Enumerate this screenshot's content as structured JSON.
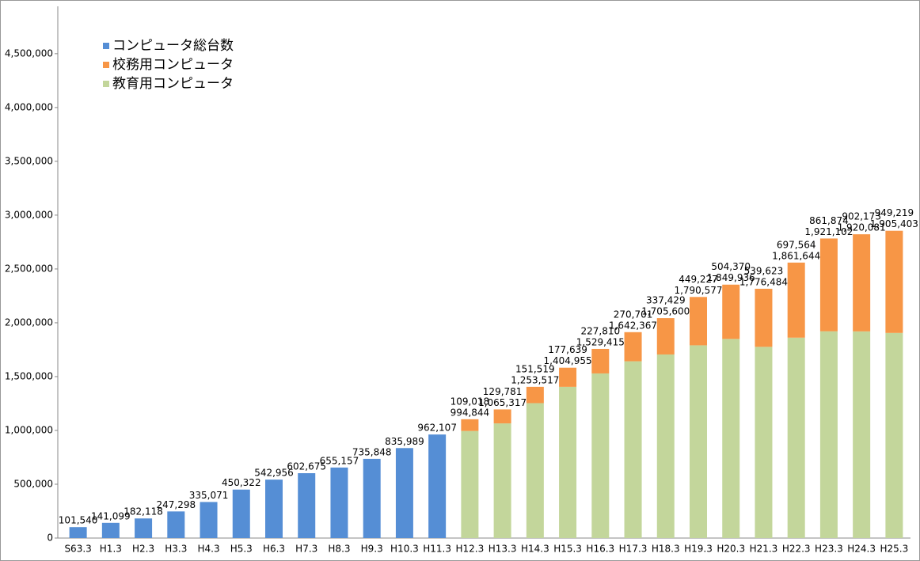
{
  "chart_data": {
    "type": "bar",
    "stacked": true,
    "categories": [
      "S63.3",
      "H1.3",
      "H2.3",
      "H3.3",
      "H4.3",
      "H5.3",
      "H6.3",
      "H7.3",
      "H8.3",
      "H9.3",
      "H10.3",
      "H11.3",
      "H12.3",
      "H13.3",
      "H14.3",
      "H15.3",
      "H16.3",
      "H17.3",
      "H18.3",
      "H19.3",
      "H20.3",
      "H21.3",
      "H22.3",
      "H23.3",
      "H24.3",
      "H25.3"
    ],
    "series": [
      {
        "name": "コンピュータ総台数",
        "color": "#558ed5",
        "values": [
          101540,
          141099,
          182118,
          247298,
          335071,
          450322,
          542956,
          602675,
          655157,
          735848,
          835989,
          962107,
          null,
          null,
          null,
          null,
          null,
          null,
          null,
          null,
          null,
          null,
          null,
          null,
          null,
          null
        ],
        "value_labels": [
          "101,540",
          "141,099",
          "182,118",
          "247,298",
          "335,071",
          "450,322",
          "542,956",
          "602,675",
          "655,157",
          "735,848",
          "835,989",
          "962,107",
          null,
          null,
          null,
          null,
          null,
          null,
          null,
          null,
          null,
          null,
          null,
          null,
          null,
          null
        ]
      },
      {
        "name": "校務用コンピュータ",
        "color": "#f79646",
        "values": [
          null,
          null,
          null,
          null,
          null,
          null,
          null,
          null,
          null,
          null,
          null,
          null,
          109018,
          129781,
          151519,
          177639,
          227810,
          270701,
          337429,
          449227,
          504370,
          539623,
          697564,
          861874,
          902173,
          949219
        ],
        "value_labels": [
          null,
          null,
          null,
          null,
          null,
          null,
          null,
          null,
          null,
          null,
          null,
          null,
          "109,018",
          "129,781",
          "151,519",
          "177,639",
          "227,810",
          "270,701",
          "337,429",
          "449,227",
          "504,370",
          "539,623",
          "697,564",
          "861,874",
          "902,173",
          "949,219"
        ]
      },
      {
        "name": "教育用コンピュータ",
        "color": "#c3d69b",
        "values": [
          null,
          null,
          null,
          null,
          null,
          null,
          null,
          null,
          null,
          null,
          null,
          null,
          994844,
          1065317,
          1253517,
          1404955,
          1529415,
          1642367,
          1705600,
          1790577,
          1849936,
          1776484,
          1861644,
          1921102,
          1920081,
          1905403
        ],
        "value_labels": [
          null,
          null,
          null,
          null,
          null,
          null,
          null,
          null,
          null,
          null,
          null,
          null,
          "994,844",
          "1,065,317",
          "1,253,517",
          "1,404,955",
          "1,529,415",
          "1,642,367",
          "1,705,600",
          "1,790,577",
          "1,849,936",
          "1,776,484",
          "1,861,644",
          "1,921,102",
          "1,920,081",
          "1,905,403"
        ]
      }
    ],
    "ylim": [
      0,
      4940000
    ],
    "yticks": [
      0,
      {
        "value": 500000,
        "label": "500,000"
      },
      {
        "value": 1000000,
        "label": "1,000,000"
      },
      {
        "value": 1500000,
        "label": "1,500,000"
      },
      {
        "value": 2000000,
        "label": "2,000,000"
      },
      {
        "value": 2500000,
        "label": "2,500,000"
      },
      {
        "value": 3000000,
        "label": "3,000,000"
      },
      {
        "value": 3500000,
        "label": "3,500,000"
      },
      {
        "value": 4000000,
        "label": "4,000,000"
      },
      {
        "value": 4500000,
        "label": "4,500,000"
      }
    ],
    "legend": "upper left",
    "grid": false
  }
}
